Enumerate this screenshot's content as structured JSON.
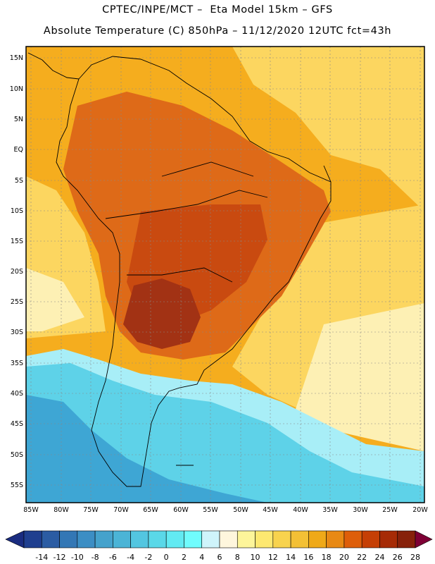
{
  "title": {
    "line1": "CPTEC/INPE/MCT –  Eta Model 15km – GFS",
    "line2": "Absolute Temperature (C) 850hPa – 11/12/2020 12UTC fct=43h"
  },
  "axes": {
    "lat_labels": [
      "15N",
      "10N",
      "5N",
      "EQ",
      "5S",
      "10S",
      "15S",
      "20S",
      "25S",
      "30S",
      "35S",
      "40S",
      "45S",
      "50S",
      "55S"
    ],
    "lon_labels": [
      "85W",
      "80W",
      "75W",
      "70W",
      "65W",
      "60W",
      "55W",
      "50W",
      "45W",
      "40W",
      "35W",
      "30W",
      "25W",
      "20W"
    ]
  },
  "colorbar": {
    "labels": [
      "-14",
      "-12",
      "-10",
      "-8",
      "-6",
      "-4",
      "-2",
      "0",
      "2",
      "4",
      "6",
      "8",
      "10",
      "12",
      "14",
      "16",
      "18",
      "20",
      "22",
      "24",
      "26",
      "28"
    ],
    "colors": [
      "#1f3f8f",
      "#2b5ca3",
      "#3377b5",
      "#3c8ec4",
      "#45a2cc",
      "#4bb4d6",
      "#53c6e0",
      "#5ad8e8",
      "#62eaf2",
      "#70fcfd",
      "#cff4fb",
      "#fef6dd",
      "#fdf59a",
      "#fde870",
      "#f8d34e",
      "#f3c035",
      "#efa918",
      "#e88914",
      "#de5e0a",
      "#c53f05",
      "#a62b06",
      "#87210a"
    ],
    "low_color": "#1a2c80",
    "high_color": "#7e0035"
  },
  "map_palette": {
    "ocean_warm": "#f5ad1e",
    "ocean_mid": "#fcd660",
    "ocean_pale": "#fdf0b4",
    "land_hot": "#de6a18",
    "land_hotter": "#c94a10",
    "core_hot": "#a23214",
    "cold_cyan": "#5ed2e8",
    "cold_light": "#a8eef7",
    "cold_blue": "#3ea6d4",
    "coast": "#000000",
    "grid": "#888888"
  }
}
